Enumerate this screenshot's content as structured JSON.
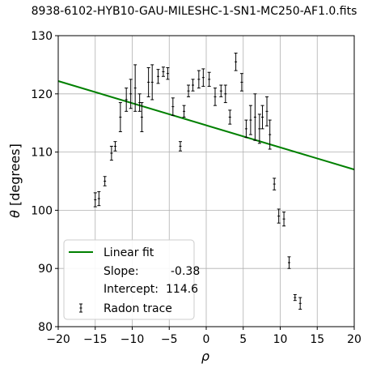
{
  "chart_data": {
    "type": "scatter",
    "title": "8938-6102-HYB10-GAU-MILESHC-1-SN1-MC250-AF1.0.fits",
    "xlabel": "ρ",
    "ylabel_symbol": "θ",
    "ylabel_unit": "[degrees]",
    "xlim": [
      -20,
      20
    ],
    "ylim": [
      80,
      130
    ],
    "xticks": [
      "−20",
      "−15",
      "−10",
      "−5",
      "0",
      "5",
      "10",
      "15",
      "20"
    ],
    "yticks": [
      "80",
      "90",
      "100",
      "110",
      "120",
      "130"
    ],
    "grid": true,
    "legend_position": "lower-left",
    "fit": {
      "name": "Linear fit",
      "slope_label": "Slope:",
      "slope_value": "-0.38",
      "intercept_label": "Intercept:",
      "intercept_value": "114.6",
      "slope": -0.38,
      "intercept": 114.6,
      "color": "#008000"
    },
    "trace_name": "Radon trace",
    "trace_color": "#000000",
    "points": [
      {
        "x": -15,
        "y": 101.8,
        "err": 1.2
      },
      {
        "x": -14.5,
        "y": 102.0,
        "err": 1.2
      },
      {
        "x": -13.7,
        "y": 105.0,
        "err": 0.8
      },
      {
        "x": -12.8,
        "y": 109.8,
        "err": 1.2
      },
      {
        "x": -12.3,
        "y": 111.0,
        "err": 0.8
      },
      {
        "x": -11.6,
        "y": 116.0,
        "err": 2.5
      },
      {
        "x": -10.8,
        "y": 119.0,
        "err": 2.0
      },
      {
        "x": -10.2,
        "y": 120.0,
        "err": 2.5
      },
      {
        "x": -9.6,
        "y": 121.0,
        "err": 4.0
      },
      {
        "x": -9.0,
        "y": 118.5,
        "err": 1.5
      },
      {
        "x": -8.7,
        "y": 116.0,
        "err": 2.5
      },
      {
        "x": -7.8,
        "y": 122.0,
        "err": 2.5
      },
      {
        "x": -7.3,
        "y": 122.0,
        "err": 3.0
      },
      {
        "x": -6.5,
        "y": 123.0,
        "err": 1.2
      },
      {
        "x": -5.8,
        "y": 123.8,
        "err": 0.8
      },
      {
        "x": -5.2,
        "y": 123.5,
        "err": 1.0
      },
      {
        "x": -4.5,
        "y": 117.8,
        "err": 1.5
      },
      {
        "x": -3.5,
        "y": 111.0,
        "err": 0.8
      },
      {
        "x": -3.0,
        "y": 117.0,
        "err": 1.0
      },
      {
        "x": -2.4,
        "y": 120.5,
        "err": 1.0
      },
      {
        "x": -1.8,
        "y": 121.5,
        "err": 1.0
      },
      {
        "x": -1.0,
        "y": 122.5,
        "err": 1.5
      },
      {
        "x": -0.4,
        "y": 122.8,
        "err": 1.5
      },
      {
        "x": 0.4,
        "y": 122.5,
        "err": 1.2
      },
      {
        "x": 1.2,
        "y": 119.5,
        "err": 1.5
      },
      {
        "x": 2.0,
        "y": 120.5,
        "err": 1.0
      },
      {
        "x": 2.6,
        "y": 120.0,
        "err": 1.5
      },
      {
        "x": 3.2,
        "y": 116.0,
        "err": 1.2
      },
      {
        "x": 4.0,
        "y": 125.5,
        "err": 1.5
      },
      {
        "x": 4.8,
        "y": 122.0,
        "err": 1.5
      },
      {
        "x": 5.4,
        "y": 114.0,
        "err": 1.5
      },
      {
        "x": 6.0,
        "y": 115.5,
        "err": 2.5
      },
      {
        "x": 6.6,
        "y": 116.0,
        "err": 4.0
      },
      {
        "x": 7.2,
        "y": 114.0,
        "err": 2.5
      },
      {
        "x": 7.6,
        "y": 116.0,
        "err": 2.0
      },
      {
        "x": 8.2,
        "y": 117.0,
        "err": 2.5
      },
      {
        "x": 8.6,
        "y": 113.0,
        "err": 2.5
      },
      {
        "x": 9.2,
        "y": 104.5,
        "err": 1.0
      },
      {
        "x": 9.8,
        "y": 99.0,
        "err": 1.2
      },
      {
        "x": 10.5,
        "y": 98.5,
        "err": 1.2
      },
      {
        "x": 11.2,
        "y": 91.0,
        "err": 1.0
      },
      {
        "x": 12.0,
        "y": 85.0,
        "err": 0.5
      },
      {
        "x": 12.7,
        "y": 84.0,
        "err": 1.0
      }
    ]
  }
}
